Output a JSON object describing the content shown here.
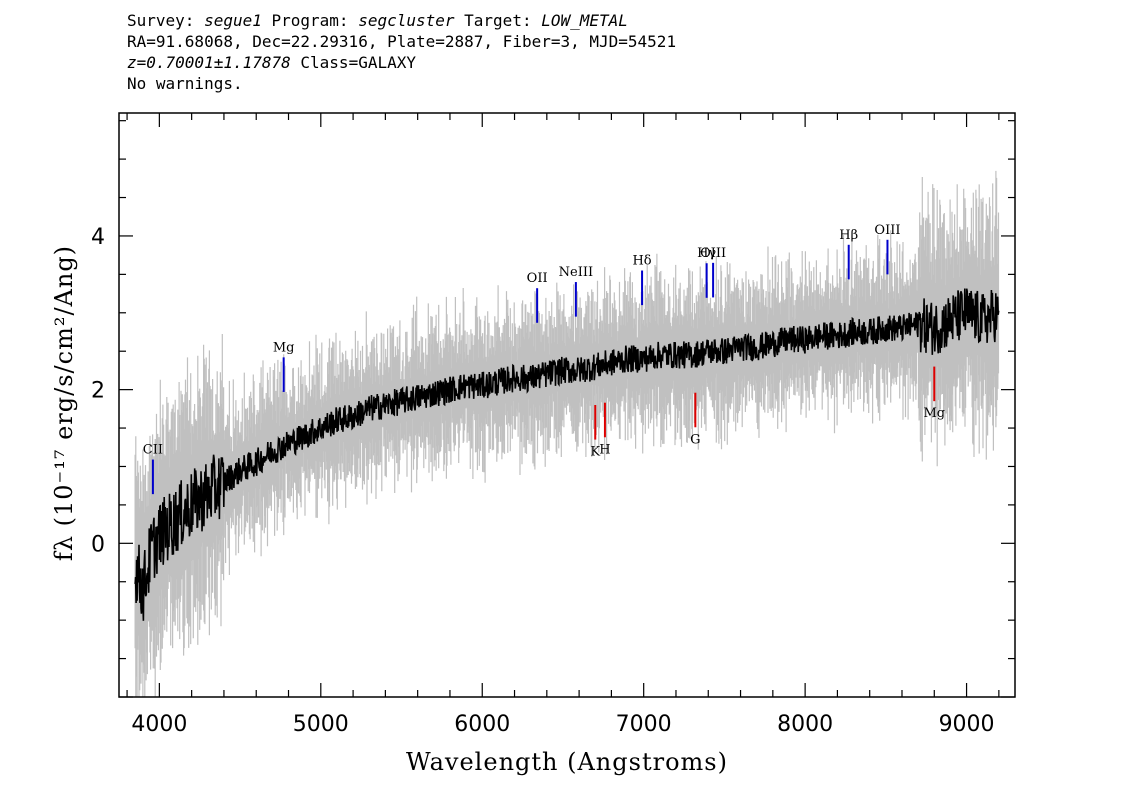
{
  "header": {
    "survey_label": "Survey: ",
    "survey": "segue1",
    "program_label": " Program: ",
    "program": "segcluster",
    "target_label": " Target: ",
    "target": "LOW_METAL",
    "line2": "RA=91.68068, Dec=22.29316, Plate=2887, Fiber=3, MJD=54521",
    "z_value": "z=0.70001±1.17878",
    "class_text": " Class=GALAXY",
    "line4": "No warnings."
  },
  "chart_data": {
    "type": "line",
    "xlabel": "Wavelength (Angstroms)",
    "ylabel": "fλ (10⁻¹⁷ erg/s/cm²/Ang)",
    "xlim": [
      3750,
      9300
    ],
    "ylim": [
      -2.0,
      5.6
    ],
    "x_ticks": [
      4000,
      5000,
      6000,
      7000,
      8000,
      9000
    ],
    "y_ticks": [
      0,
      2,
      4
    ],
    "colors": {
      "flux": "#000000",
      "noise": "#c0c0c0",
      "emission": "#0000cc",
      "absorption": "#dd0000"
    },
    "series": [
      {
        "name": "",
        "x": [
          3850,
          3900,
          3950,
          4000,
          4100,
          4200,
          4300,
          4400,
          4500,
          4600,
          4700,
          4800,
          4900,
          5000,
          5100,
          5200,
          5300,
          5400,
          5500,
          5600,
          5700,
          5800,
          5900,
          6000,
          6100,
          6200,
          6300,
          6400,
          6500,
          6600,
          6700,
          6800,
          6900,
          7000,
          7100,
          7200,
          7300,
          7400,
          7500,
          7600,
          7700,
          7800,
          7900,
          8000,
          8100,
          8200,
          8300,
          8400,
          8500,
          8600,
          8700,
          8800,
          8900,
          9000,
          9100,
          9200
        ],
        "y": [
          -0.3,
          -0.6,
          -0.1,
          0.1,
          0.3,
          0.5,
          0.65,
          0.8,
          0.95,
          1.05,
          1.2,
          1.3,
          1.4,
          1.5,
          1.6,
          1.65,
          1.75,
          1.8,
          1.85,
          1.9,
          1.95,
          2.0,
          2.05,
          2.05,
          2.1,
          2.15,
          2.15,
          2.2,
          2.25,
          2.25,
          2.3,
          2.35,
          2.4,
          2.4,
          2.45,
          2.45,
          2.45,
          2.5,
          2.5,
          2.55,
          2.55,
          2.6,
          2.65,
          2.65,
          2.7,
          2.7,
          2.75,
          2.75,
          2.8,
          2.8,
          2.85,
          2.8,
          2.9,
          3.0,
          2.9,
          3.0
        ]
      }
    ],
    "lines": [
      {
        "label": "CII",
        "x": 3960,
        "kind": "emission"
      },
      {
        "label": "Mg",
        "x": 4770,
        "kind": "emission"
      },
      {
        "label": "OII",
        "x": 6340,
        "kind": "emission"
      },
      {
        "label": "NeIII",
        "x": 6580,
        "kind": "emission"
      },
      {
        "label": "Hδ",
        "x": 6990,
        "kind": "emission"
      },
      {
        "label": "Hγ",
        "x": 7390,
        "kind": "emission"
      },
      {
        "label": "OIII",
        "x": 7430,
        "kind": "emission"
      },
      {
        "label": "Hβ",
        "x": 8270,
        "kind": "emission"
      },
      {
        "label": "OIII",
        "x": 8510,
        "kind": "emission"
      },
      {
        "label": "K",
        "x": 6700,
        "kind": "absorption"
      },
      {
        "label": "H",
        "x": 6760,
        "kind": "absorption"
      },
      {
        "label": "G",
        "x": 7320,
        "kind": "absorption"
      },
      {
        "label": "Mg",
        "x": 8800,
        "kind": "absorption"
      }
    ]
  }
}
